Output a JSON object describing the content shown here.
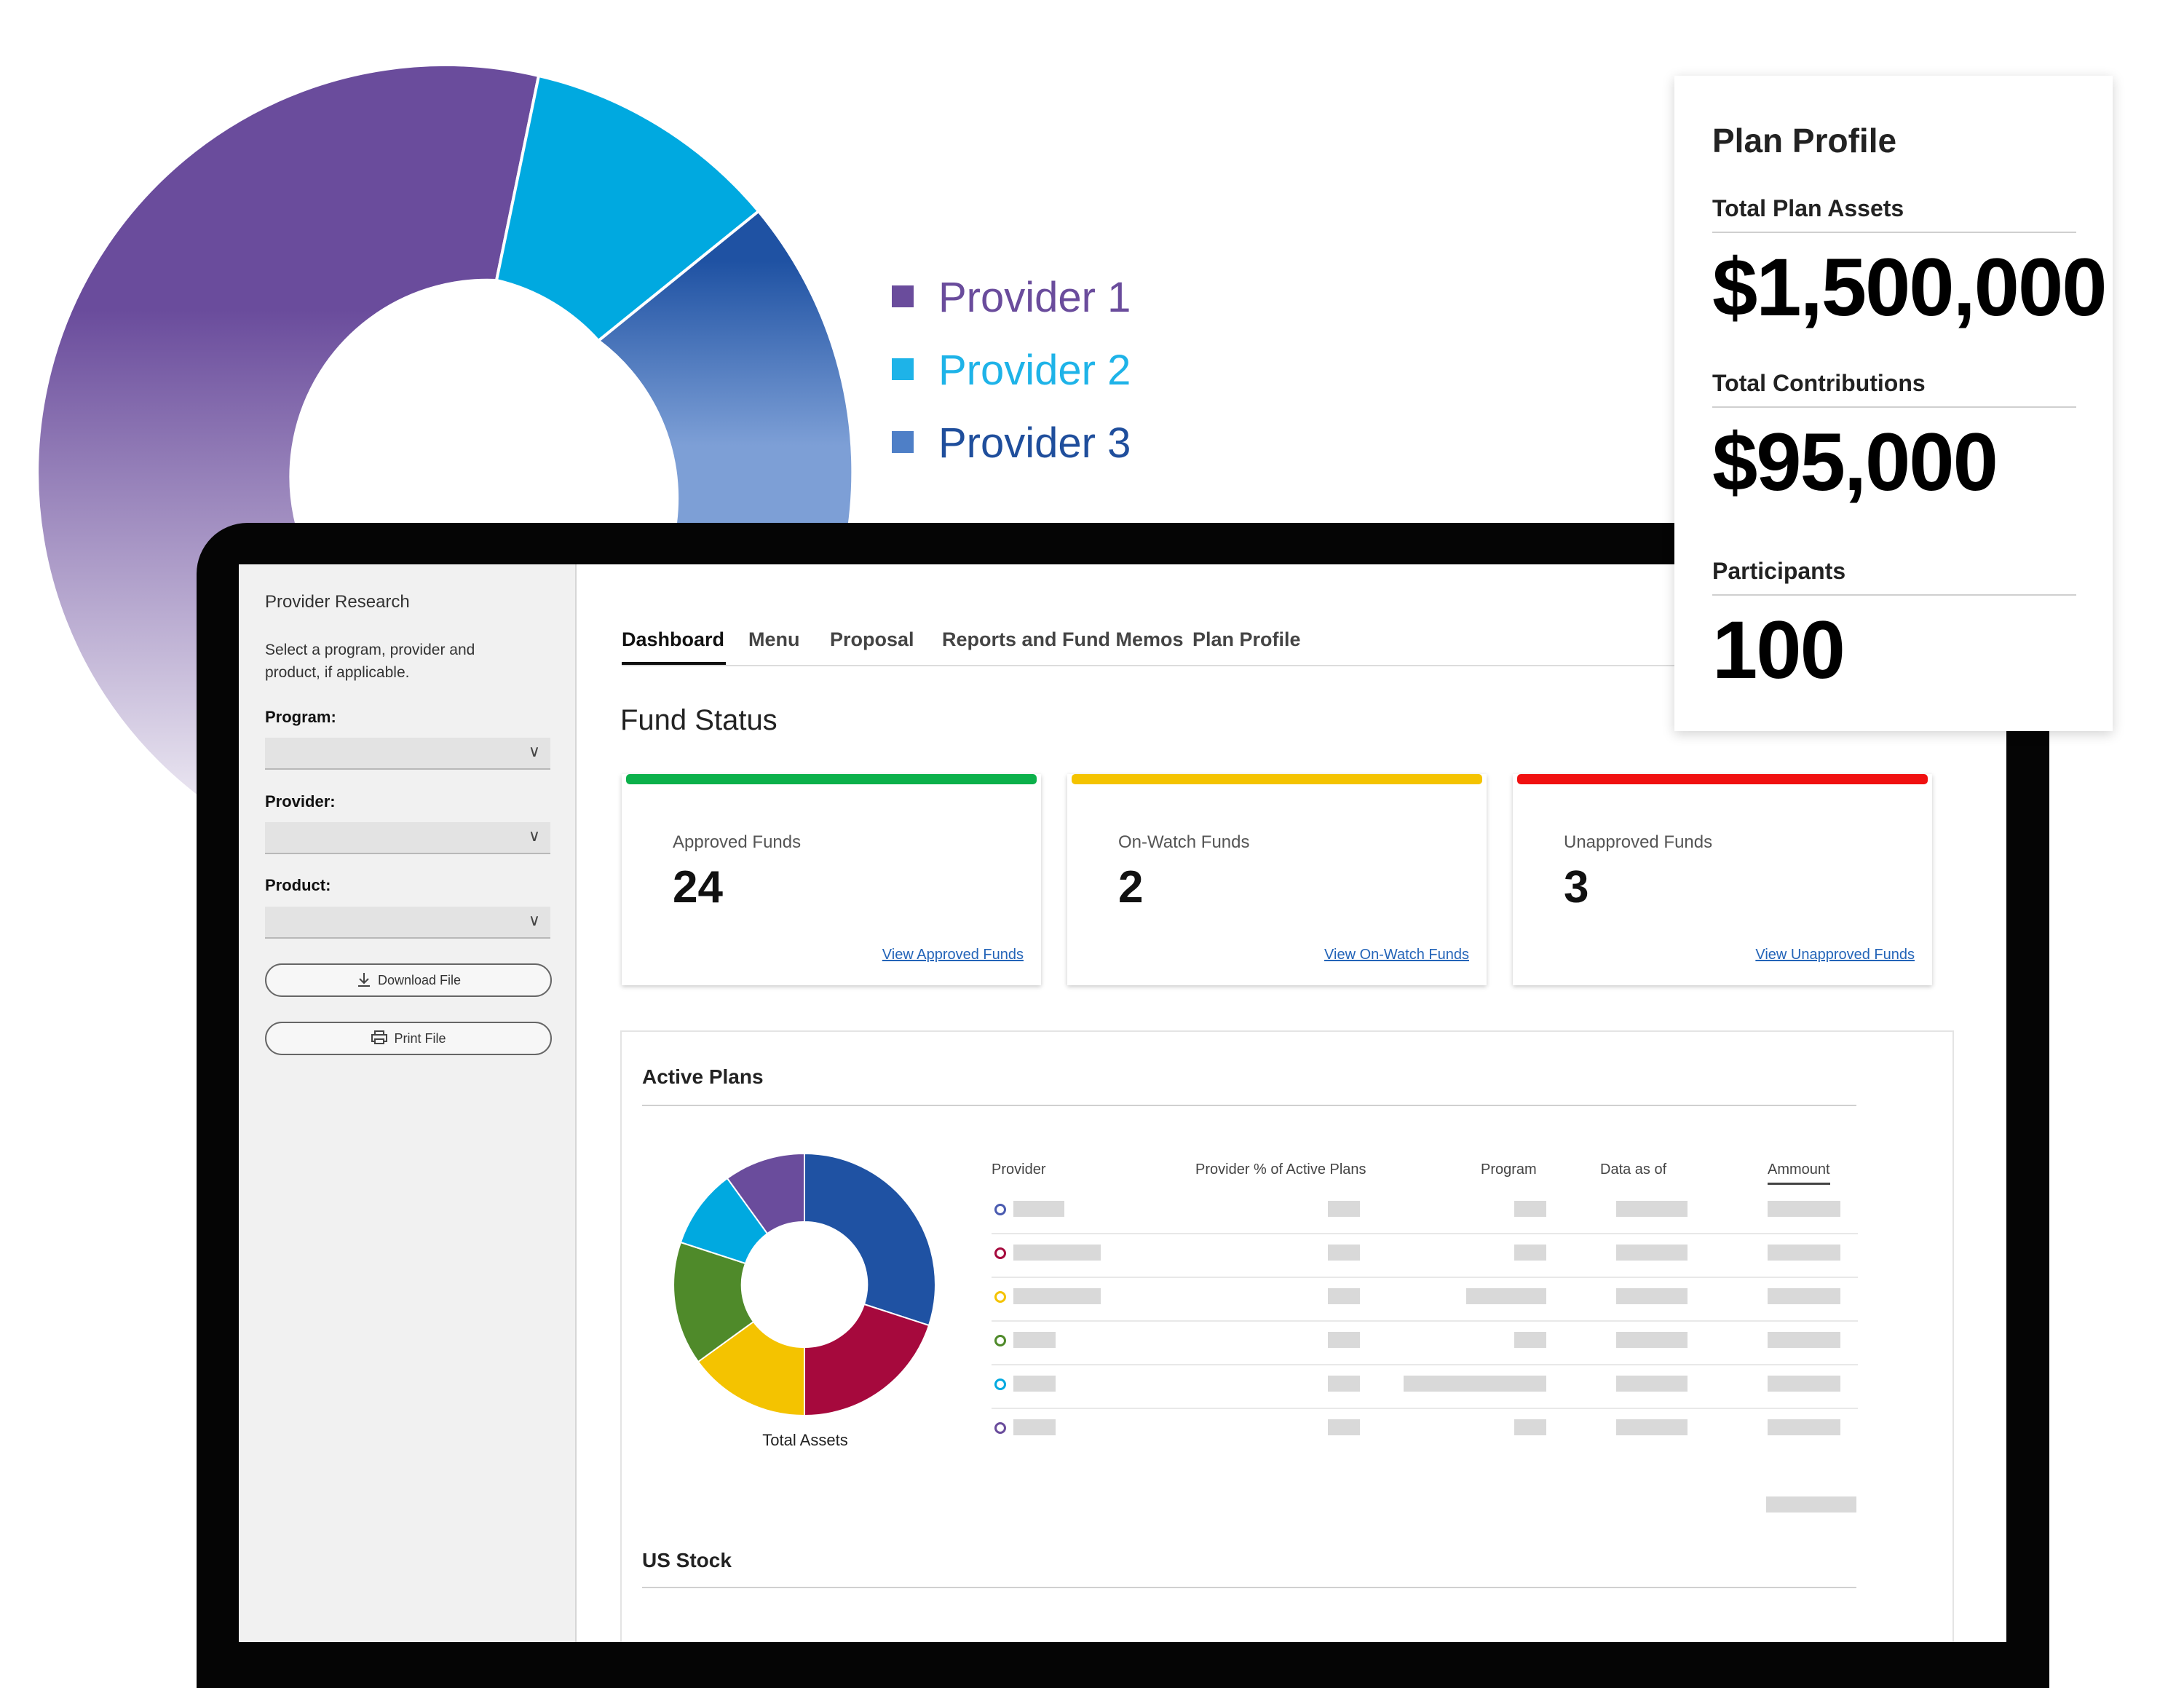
{
  "hero_chart": {
    "legend": [
      {
        "label": "Provider 1",
        "color": "#6a4c9c"
      },
      {
        "label": "Provider 2",
        "color": "#00a9e0"
      },
      {
        "label": "Provider 3",
        "color": "#1f4e9c"
      }
    ]
  },
  "sidebar": {
    "title": "Provider Research",
    "description": "Select a program, provider and product, if applicable.",
    "program_label": "Program:",
    "provider_label": "Provider:",
    "product_label": "Product:",
    "download_label": "Download File",
    "print_label": "Print File"
  },
  "tabs": [
    "Dashboard",
    "Menu",
    "Proposal",
    "Reports and Fund Memos",
    "Plan Profile"
  ],
  "fund_status": {
    "title": "Fund Status",
    "cards": [
      {
        "label": "Approved Funds",
        "value": "24",
        "link": "View Approved Funds",
        "color": "#0bb04a"
      },
      {
        "label": "On-Watch Funds",
        "value": "2",
        "link": "View On-Watch Funds",
        "color": "#f4c300"
      },
      {
        "label": "Unapproved Funds",
        "value": "3",
        "link": "View Unapproved Funds",
        "color": "#f01010"
      }
    ]
  },
  "active_plans": {
    "title": "Active Plans",
    "chart_label": "Total Assets",
    "columns": [
      "Provider",
      "Provider % of Active Plans",
      "Program",
      "Data as of",
      "Ammount"
    ],
    "row_colors": [
      "#4a5bb0",
      "#a6093d",
      "#f4c300",
      "#4f8a2a",
      "#00a9e0",
      "#6a4c9c"
    ]
  },
  "us_stock": {
    "title": "US Stock"
  },
  "plan_profile": {
    "title": "Plan Profile",
    "total_assets_label": "Total Plan Assets",
    "total_assets_value": "$1,500,000",
    "contributions_label": "Total Contributions",
    "contributions_value": "$95,000",
    "participants_label": "Participants",
    "participants_value": "100"
  }
}
